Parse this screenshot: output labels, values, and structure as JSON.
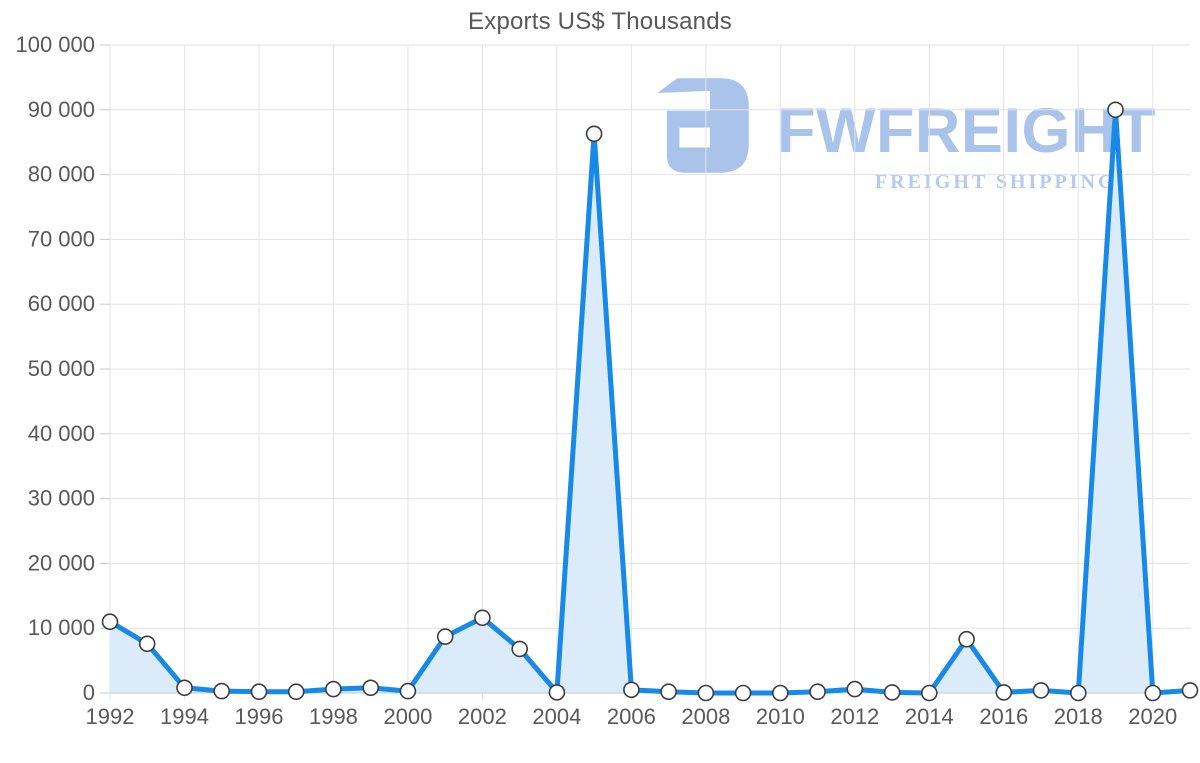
{
  "title": "Exports US$ Thousands",
  "watermark": {
    "brand": "FWFREIGHT",
    "tagline": "FREIGHT SHIPPING"
  },
  "colors": {
    "title_text": "#595959",
    "axis_text": "#595959",
    "grid": "#e3e3e3",
    "axis_line": "#c9c9c9",
    "series_line": "#1789e8",
    "series_fill": "#dcebfa",
    "marker_fill": "#ffffff",
    "marker_stroke": "#3d3d3d",
    "watermark": "#a9c3ea",
    "watermark_tagline": "#b5caf0"
  },
  "chart_data": {
    "type": "area",
    "title": "Exports US$ Thousands",
    "x": [
      1992,
      1993,
      1994,
      1995,
      1996,
      1997,
      1998,
      1999,
      2000,
      2001,
      2002,
      2003,
      2004,
      2005,
      2006,
      2007,
      2008,
      2009,
      2010,
      2011,
      2012,
      2013,
      2014,
      2015,
      2016,
      2017,
      2018,
      2019,
      2020,
      2021
    ],
    "values": [
      11000,
      7600,
      800,
      300,
      200,
      200,
      600,
      800,
      300,
      8700,
      11600,
      6800,
      100,
      86300,
      500,
      200,
      0,
      0,
      0,
      200,
      600,
      100,
      0,
      8300,
      100,
      400,
      0,
      90000,
      0,
      400
    ],
    "xtick_labels": [
      "1992",
      "1994",
      "1996",
      "1998",
      "2000",
      "2002",
      "2004",
      "2006",
      "2008",
      "2010",
      "2012",
      "2014",
      "2016",
      "2018",
      "2020"
    ],
    "ytick_values": [
      0,
      10000,
      20000,
      30000,
      40000,
      50000,
      60000,
      70000,
      80000,
      90000,
      100000
    ],
    "ytick_labels": [
      "0",
      "10 000",
      "20 000",
      "30 000",
      "40 000",
      "50 000",
      "60 000",
      "70 000",
      "80 000",
      "90 000",
      "100 000"
    ],
    "ylim": [
      0,
      100000
    ],
    "grid": true,
    "legend": false,
    "marker": "circle-white"
  }
}
